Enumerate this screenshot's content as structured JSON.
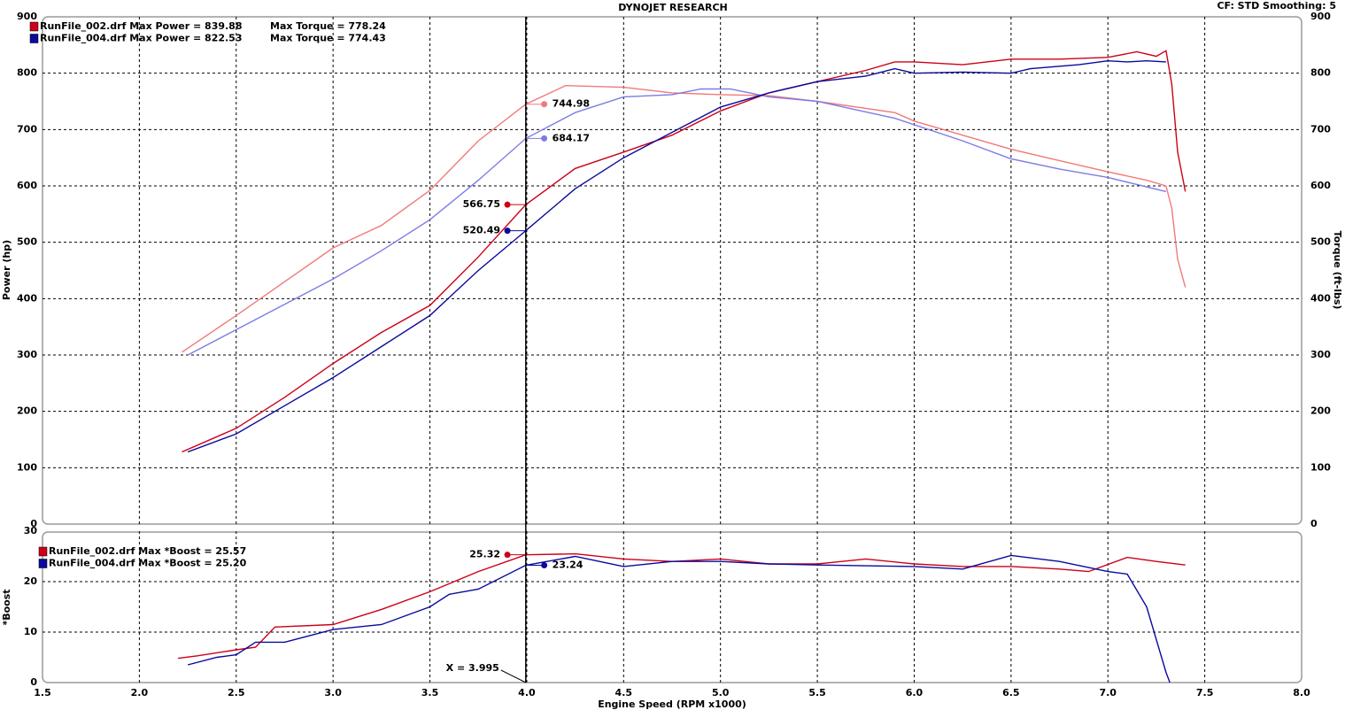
{
  "chart_data": [
    {
      "type": "line",
      "title": "DYNOJET RESEARCH",
      "subtitle": "CF: STD  Smoothing: 5",
      "y_label": "Power (hp)",
      "y2_label": "Torque (ft-lbs)",
      "xlim": [
        1.5,
        8
      ],
      "xticks": [
        1.5,
        2,
        2.5,
        3,
        3.5,
        4,
        4.5,
        5,
        5.5,
        6,
        6.5,
        7,
        7.5,
        8
      ],
      "ylim": [
        0,
        900
      ],
      "yticks": [
        0,
        100,
        200,
        300,
        400,
        500,
        600,
        700,
        800,
        900
      ],
      "y2lim": [
        0,
        900
      ],
      "y2ticks": [
        0,
        100,
        200,
        300,
        400,
        500,
        600,
        700,
        800,
        900
      ],
      "grid": true,
      "series": [
        {
          "name": "RunFile_002.drf Max Power = 839.88",
          "color": "#cc0018",
          "cursor_value": 566.75,
          "x": [
            2.22,
            2.5,
            2.75,
            3,
            3.25,
            3.5,
            3.75,
            3.995,
            4.25,
            4.5,
            4.75,
            5,
            5.25,
            5.5,
            5.75,
            5.9,
            6,
            6.25,
            6.5,
            6.75,
            7,
            7.15,
            7.25,
            7.3,
            7.33,
            7.36,
            7.4
          ],
          "values": [
            128,
            170,
            225,
            285,
            340,
            388,
            474,
            566.75,
            631,
            660,
            690,
            733,
            765,
            785,
            805,
            820,
            820,
            815,
            825,
            825,
            828,
            838,
            830,
            839.88,
            780,
            660,
            590
          ]
        },
        {
          "name": "RunFile_004.drf Max Power = 822.53",
          "color": "#0a0a9c",
          "cursor_value": 520.49,
          "x": [
            2.25,
            2.5,
            2.75,
            3,
            3.25,
            3.5,
            3.75,
            3.995,
            4.25,
            4.5,
            4.75,
            5,
            5.25,
            5.5,
            5.75,
            5.9,
            6,
            6.25,
            6.5,
            6.6,
            6.85,
            7,
            7.1,
            7.2,
            7.3
          ],
          "values": [
            128,
            160,
            210,
            260,
            315,
            370,
            450,
            520.49,
            595,
            650,
            695,
            740,
            765,
            785,
            795,
            808,
            800,
            802,
            800,
            808,
            815,
            822,
            820,
            822,
            820
          ]
        },
        {
          "name": "Max Torque = 778.24",
          "color": "#f07a7a",
          "axis": "y2",
          "cursor_value": 744.98,
          "x": [
            2.22,
            2.5,
            2.75,
            3,
            3.25,
            3.5,
            3.75,
            3.995,
            4.2,
            4.5,
            4.75,
            5,
            5.25,
            5.5,
            5.9,
            6,
            6.25,
            6.5,
            6.75,
            7,
            7.2,
            7.3,
            7.33,
            7.36,
            7.4
          ],
          "values": [
            305,
            370,
            430,
            490,
            530,
            592,
            680,
            744.98,
            778,
            775,
            765,
            762,
            760,
            750,
            730,
            715,
            690,
            665,
            645,
            625,
            610,
            600,
            560,
            470,
            420
          ]
        },
        {
          "name": "Max Torque = 774.43",
          "color": "#7c7ce6",
          "axis": "y2",
          "cursor_value": 684.17,
          "x": [
            2.25,
            2.5,
            2.75,
            3,
            3.25,
            3.5,
            3.75,
            3.995,
            4.25,
            4.5,
            4.75,
            4.9,
            5.05,
            5.25,
            5.5,
            5.9,
            6.25,
            6.5,
            6.75,
            7,
            7.3
          ],
          "values": [
            300,
            345,
            390,
            435,
            485,
            540,
            610,
            684.17,
            730,
            758,
            762,
            772,
            772,
            758,
            750,
            720,
            680,
            648,
            630,
            615,
            590
          ]
        }
      ]
    },
    {
      "type": "line",
      "y_label": "*Boost",
      "x_label": "Engine Speed (RPM x1000)",
      "xlim": [
        1.5,
        8
      ],
      "xticks": [
        1.5,
        {
          "value": 2,
          "label": "2.0"
        },
        2.5,
        {
          "value": 3,
          "label": "3.0"
        },
        3.5,
        {
          "value": 4,
          "label": "4.0"
        },
        4.5,
        {
          "value": 5,
          "label": "5.0"
        },
        5.5,
        {
          "value": 6,
          "label": "6.0"
        },
        6.5,
        {
          "value": 7,
          "label": "7.0"
        },
        7.5,
        {
          "value": 8,
          "label": "8.0"
        }
      ],
      "ylim": [
        0,
        30
      ],
      "yticks": [
        0,
        10,
        20,
        30
      ],
      "grid": true,
      "cursor": {
        "x": 3.995,
        "label": "X = 3.995"
      },
      "series": [
        {
          "name": "RunFile_002.drf Max *Boost = 25.57",
          "color": "#cc0018",
          "cursor_value": 25.32,
          "x": [
            2.2,
            2.3,
            2.5,
            2.6,
            2.7,
            3,
            3.25,
            3.5,
            3.75,
            3.995,
            4.25,
            4.5,
            4.75,
            5,
            5.25,
            5.5,
            5.75,
            6,
            6.25,
            6.5,
            6.75,
            6.9,
            7.1,
            7.25,
            7.4
          ],
          "values": [
            4.8,
            5.3,
            6.5,
            7,
            11,
            11.5,
            14.5,
            18,
            22,
            25.32,
            25.5,
            24.5,
            24,
            24.5,
            23.5,
            23.5,
            24.5,
            23.5,
            23,
            23,
            22.5,
            22,
            24.8,
            24,
            23.3
          ]
        },
        {
          "name": "RunFile_004.drf Max *Boost = 25.20",
          "color": "#0a0a9c",
          "cursor_value": 23.24,
          "x": [
            2.25,
            2.4,
            2.5,
            2.6,
            2.75,
            3,
            3.25,
            3.5,
            3.6,
            3.75,
            3.995,
            4.25,
            4.5,
            4.75,
            5,
            5.25,
            5.5,
            6,
            6.25,
            6.5,
            6.75,
            7,
            7.1,
            7.2,
            7.3,
            7.32
          ],
          "values": [
            3.5,
            5,
            5.5,
            8,
            8,
            10.5,
            11.5,
            15,
            17.5,
            18.5,
            23.24,
            25,
            23,
            24,
            24,
            23.5,
            23.3,
            23,
            22.5,
            25.2,
            24,
            22,
            21.5,
            15,
            2,
            0
          ]
        }
      ]
    }
  ]
}
